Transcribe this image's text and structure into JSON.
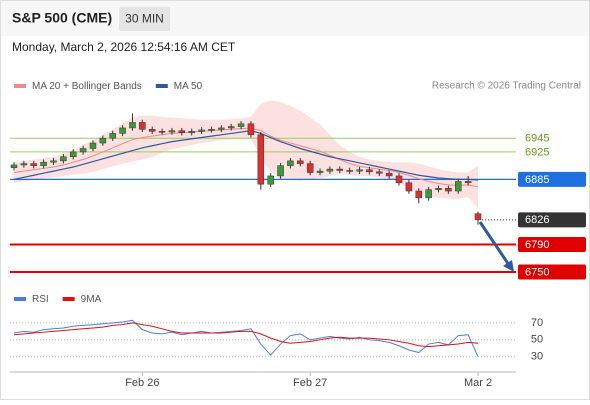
{
  "header": {
    "title": "S&P 500 (CME)",
    "timeframe": "30 MIN",
    "timestamp": "Monday, March 2, 2026 12:54:16 AM CET"
  },
  "chart_data": [
    {
      "type": "candlestick",
      "credit": "Research © 2026 Trading Central",
      "categories": [
        null,
        null,
        null,
        null,
        null,
        null,
        null,
        null,
        null,
        null,
        null,
        null,
        null,
        "Feb 26",
        null,
        null,
        null,
        null,
        null,
        null,
        null,
        null,
        null,
        null,
        null,
        null,
        null,
        null,
        null,
        null,
        "Feb 27",
        null,
        null,
        null,
        null,
        null,
        null,
        null,
        null,
        null,
        null,
        null,
        null,
        null,
        null,
        null,
        null,
        "Mar 2"
      ],
      "open": [
        6902,
        6906,
        6908,
        6905,
        6910,
        6912,
        6918,
        6925,
        6930,
        6938,
        6945,
        6952,
        6960,
        6968,
        6958,
        6955,
        6954,
        6956,
        6953,
        6955,
        6957,
        6958,
        6960,
        6962,
        6966,
        6950,
        6878,
        6890,
        6905,
        6912,
        6908,
        6895,
        6897,
        6900,
        6898,
        6897,
        6899,
        6896,
        6894,
        6890,
        6880,
        6868,
        6858,
        6870,
        6872,
        6868,
        6882,
        6835
      ],
      "high": [
        6910,
        6912,
        6912,
        6914,
        6916,
        6922,
        6929,
        6934,
        6942,
        6949,
        6956,
        6964,
        6981,
        6972,
        6962,
        6959,
        6960,
        6960,
        6959,
        6961,
        6962,
        6964,
        6966,
        6970,
        6970,
        6954,
        6894,
        6909,
        6916,
        6916,
        6912,
        6901,
        6904,
        6904,
        6902,
        6903,
        6903,
        6900,
        6898,
        6894,
        6884,
        6872,
        6874,
        6876,
        6876,
        6886,
        6890,
        6838
      ],
      "low": [
        6898,
        6902,
        6901,
        6901,
        6906,
        6908,
        6914,
        6921,
        6926,
        6934,
        6941,
        6948,
        6956,
        6954,
        6951,
        6950,
        6950,
        6949,
        6949,
        6951,
        6953,
        6954,
        6956,
        6958,
        6946,
        6870,
        6874,
        6886,
        6901,
        6904,
        6891,
        6891,
        6893,
        6894,
        6893,
        6893,
        6892,
        6890,
        6886,
        6876,
        6864,
        6850,
        6854,
        6866,
        6864,
        6864,
        6876,
        6819
      ],
      "close": [
        6906,
        6908,
        6905,
        6910,
        6912,
        6918,
        6925,
        6930,
        6938,
        6945,
        6952,
        6960,
        6968,
        6958,
        6955,
        6954,
        6956,
        6953,
        6955,
        6957,
        6958,
        6960,
        6962,
        6966,
        6950,
        6878,
        6890,
        6905,
        6912,
        6908,
        6895,
        6897,
        6900,
        6898,
        6897,
        6899,
        6896,
        6894,
        6890,
        6880,
        6868,
        6858,
        6870,
        6872,
        6868,
        6882,
        6880,
        6826
      ],
      "up_color": "#3a9a3a",
      "down_color": "#d93030",
      "series": [
        {
          "name": "MA 20 + Bollinger Bands",
          "color": "#f08a8a",
          "band_color": "#fde0e0",
          "values": [
            6895,
            6897,
            6899,
            6901,
            6903,
            6906,
            6910,
            6914,
            6919,
            6925,
            6931,
            6937,
            6943,
            6946,
            6948,
            6950,
            6952,
            6953,
            6954,
            6955,
            6956,
            6957,
            6958,
            6959,
            6960,
            6956,
            6948,
            6942,
            6938,
            6934,
            6930,
            6926,
            6920,
            6914,
            6908,
            6904,
            6902,
            6900,
            6898,
            6895,
            6891,
            6886,
            6882,
            6879,
            6877,
            6876,
            6877,
            6874
          ],
          "upper": [
            6910,
            6912,
            6914,
            6916,
            6918,
            6922,
            6928,
            6935,
            6942,
            6950,
            6958,
            6966,
            6975,
            6978,
            6978,
            6976,
            6975,
            6974,
            6973,
            6972,
            6972,
            6972,
            6973,
            6974,
            6976,
            6995,
            7000,
            6998,
            6992,
            6985,
            6975,
            6965,
            6950,
            6935,
            6925,
            6918,
            6914,
            6912,
            6910,
            6910,
            6910,
            6908,
            6904,
            6900,
            6897,
            6895,
            6895,
            6905
          ],
          "lower": [
            6880,
            6882,
            6884,
            6886,
            6888,
            6890,
            6892,
            6893,
            6896,
            6900,
            6904,
            6908,
            6911,
            6914,
            6918,
            6924,
            6929,
            6932,
            6935,
            6938,
            6940,
            6942,
            6943,
            6944,
            6944,
            6917,
            6896,
            6886,
            6884,
            6883,
            6885,
            6887,
            6890,
            6893,
            6891,
            6890,
            6890,
            6888,
            6886,
            6880,
            6872,
            6864,
            6860,
            6858,
            6857,
            6857,
            6859,
            6843
          ]
        },
        {
          "name": "MA 50",
          "color": "#2c5aa0",
          "values": [
            6885,
            6888,
            6891,
            6894,
            6897,
            6900,
            6903,
            6907,
            6911,
            6915,
            6919,
            6923,
            6927,
            6931,
            6934,
            6937,
            6940,
            6942,
            6944,
            6946,
            6948,
            6950,
            6952,
            6954,
            6956,
            6952,
            6946,
            6940,
            6935,
            6930,
            6926,
            6922,
            6918,
            6915,
            6912,
            6909,
            6906,
            6903,
            6900,
            6897,
            6894,
            6891,
            6889,
            6887,
            6886,
            6885,
            6885,
            6884
          ]
        }
      ],
      "ylim": [
        6731,
        7008
      ],
      "levels": [
        {
          "value": 6945,
          "color": "#9acd60",
          "text_color": "#6a9a1f",
          "style": "thin"
        },
        {
          "value": 6925,
          "color": "#9acd60",
          "text_color": "#6a9a1f",
          "style": "thin"
        },
        {
          "value": 6885,
          "color": "#1e6fe0",
          "text_color": "#ffffff",
          "style": "box"
        },
        {
          "value": 6826,
          "color": "#333333",
          "text_color": "#ffffff",
          "style": "dotted"
        },
        {
          "value": 6790,
          "color": "#e00000",
          "text_color": "#ffffff",
          "style": "thick"
        },
        {
          "value": 6750,
          "color": "#e00000",
          "text_color": "#ffffff",
          "style": "thick"
        }
      ]
    },
    {
      "type": "line",
      "series": [
        {
          "name": "RSI",
          "color": "#4a7fe0",
          "values": [
            58,
            60,
            59,
            62,
            63,
            64,
            66,
            67,
            68,
            69,
            70,
            71,
            73,
            62,
            58,
            57,
            59,
            56,
            58,
            60,
            58,
            59,
            60,
            61,
            63,
            45,
            32,
            45,
            55,
            57,
            50,
            52,
            54,
            52,
            51,
            53,
            50,
            49,
            47,
            43,
            38,
            35,
            45,
            47,
            44,
            55,
            56,
            30
          ]
        },
        {
          "name": "9MA",
          "color": "#e01010",
          "values": [
            56,
            57,
            58,
            59,
            60,
            61,
            62,
            63,
            64,
            65,
            67,
            68,
            70,
            68,
            66,
            63,
            60,
            58,
            58,
            58,
            58,
            58,
            59,
            60,
            60,
            57,
            52,
            48,
            46,
            47,
            48,
            50,
            52,
            53,
            52,
            52,
            52,
            51,
            50,
            48,
            46,
            43,
            42,
            43,
            44,
            45,
            47,
            46
          ]
        }
      ],
      "ylim": [
        12,
        97
      ],
      "yticks": [
        70,
        50,
        30
      ]
    }
  ]
}
